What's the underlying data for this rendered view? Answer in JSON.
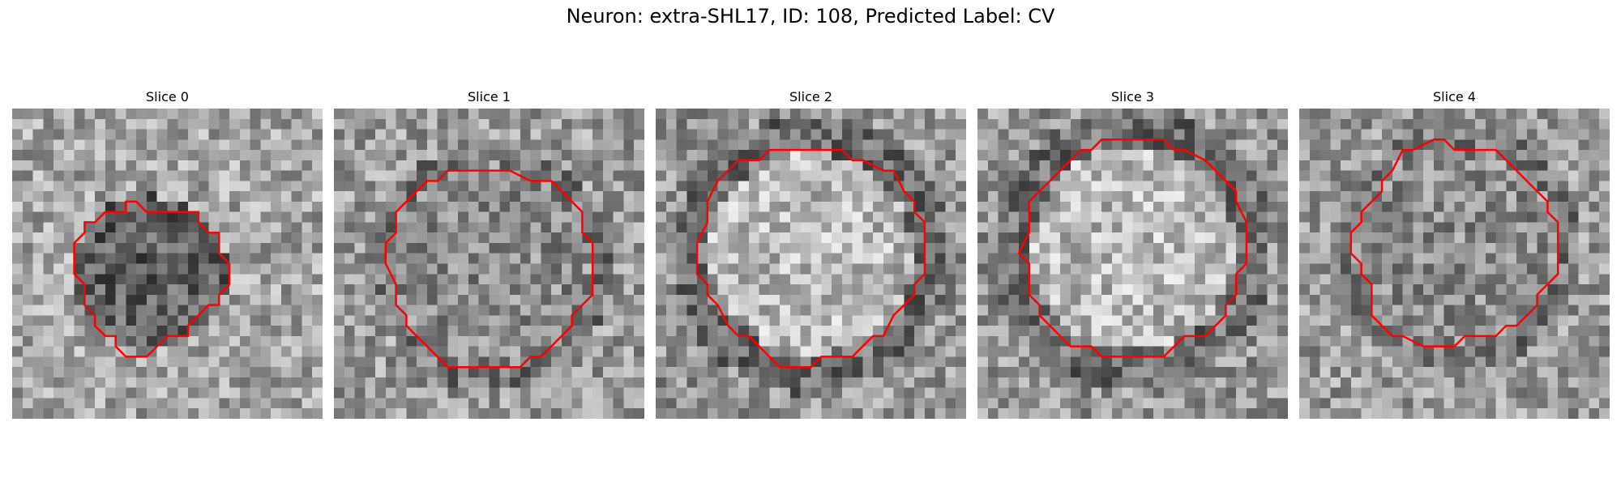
{
  "title": "Neuron: extra-SHL17, ID: 108, Predicted Label: CV",
  "colors": {
    "contour": "#ff0000",
    "background": "#ffffff"
  },
  "colormap": "gray",
  "slices": [
    {
      "label": "Slice 0",
      "seed": 11,
      "center": [
        0.44,
        0.53
      ],
      "radius": 0.25,
      "interior": "dark"
    },
    {
      "label": "Slice 1",
      "seed": 23,
      "center": [
        0.5,
        0.51
      ],
      "radius": 0.33,
      "interior": "mixed"
    },
    {
      "label": "Slice 2",
      "seed": 37,
      "center": [
        0.5,
        0.47
      ],
      "radius": 0.36,
      "interior": "bright"
    },
    {
      "label": "Slice 3",
      "seed": 41,
      "center": [
        0.5,
        0.45
      ],
      "radius": 0.36,
      "interior": "bright"
    },
    {
      "label": "Slice 4",
      "seed": 53,
      "center": [
        0.51,
        0.45
      ],
      "radius": 0.33,
      "interior": "mixed"
    }
  ]
}
